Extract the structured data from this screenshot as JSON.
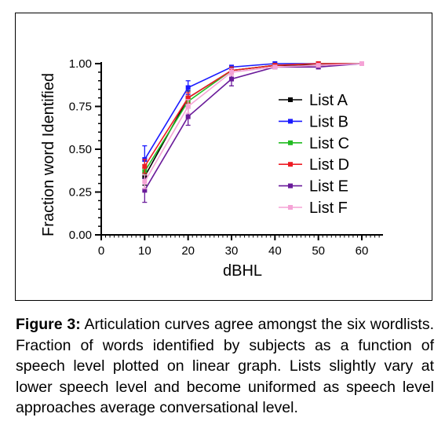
{
  "chart_data": {
    "type": "line",
    "xlabel": "dBHL",
    "ylabel": "Fraction word Identified",
    "xlim": [
      0,
      60
    ],
    "ylim": [
      0,
      1.0
    ],
    "xticks": [
      "0",
      "10",
      "20",
      "30",
      "40",
      "50",
      "60"
    ],
    "yticks": [
      "0.00",
      "0.25",
      "0.50",
      "0.75",
      "1.00"
    ],
    "x": [
      10,
      20,
      30,
      40,
      50,
      60
    ],
    "legend_position": "right",
    "series": [
      {
        "name": "List A",
        "color": "#000000",
        "values": [
          0.34,
          0.8,
          0.96,
          0.99,
          0.99,
          1.0
        ],
        "errors": [
          0.05,
          0.04,
          0.02,
          0.01,
          0.01,
          0.0
        ]
      },
      {
        "name": "List B",
        "color": "#1a1aff",
        "values": [
          0.44,
          0.86,
          0.98,
          1.0,
          1.0,
          1.0
        ],
        "errors": [
          0.08,
          0.04,
          0.01,
          0.0,
          0.0,
          0.0
        ]
      },
      {
        "name": "List C",
        "color": "#22bb22",
        "values": [
          0.37,
          0.78,
          0.96,
          0.99,
          1.0,
          1.0
        ],
        "errors": [
          0.04,
          0.03,
          0.02,
          0.01,
          0.0,
          0.0
        ]
      },
      {
        "name": "List D",
        "color": "#ee1c24",
        "values": [
          0.4,
          0.8,
          0.96,
          0.99,
          1.0,
          1.0
        ],
        "errors": [
          0.04,
          0.03,
          0.02,
          0.01,
          0.0,
          0.0
        ]
      },
      {
        "name": "List E",
        "color": "#6a1b9a",
        "values": [
          0.26,
          0.69,
          0.91,
          0.98,
          0.98,
          1.0
        ],
        "errors": [
          0.07,
          0.05,
          0.04,
          0.01,
          0.01,
          0.0
        ]
      },
      {
        "name": "List F",
        "color": "#f5a3d6",
        "values": [
          0.31,
          0.75,
          0.95,
          0.98,
          0.99,
          1.0
        ],
        "errors": [
          0.04,
          0.04,
          0.02,
          0.01,
          0.01,
          0.0
        ]
      }
    ]
  },
  "caption": {
    "label": "Figure 3:",
    "text": " Articulation curves agree amongst the six wordlists.  Fraction of words identified by subjects as a function of speech level plotted on linear graph.  Lists slightly vary at lower speech level and become uniformed as speech level approaches average conversational level."
  }
}
